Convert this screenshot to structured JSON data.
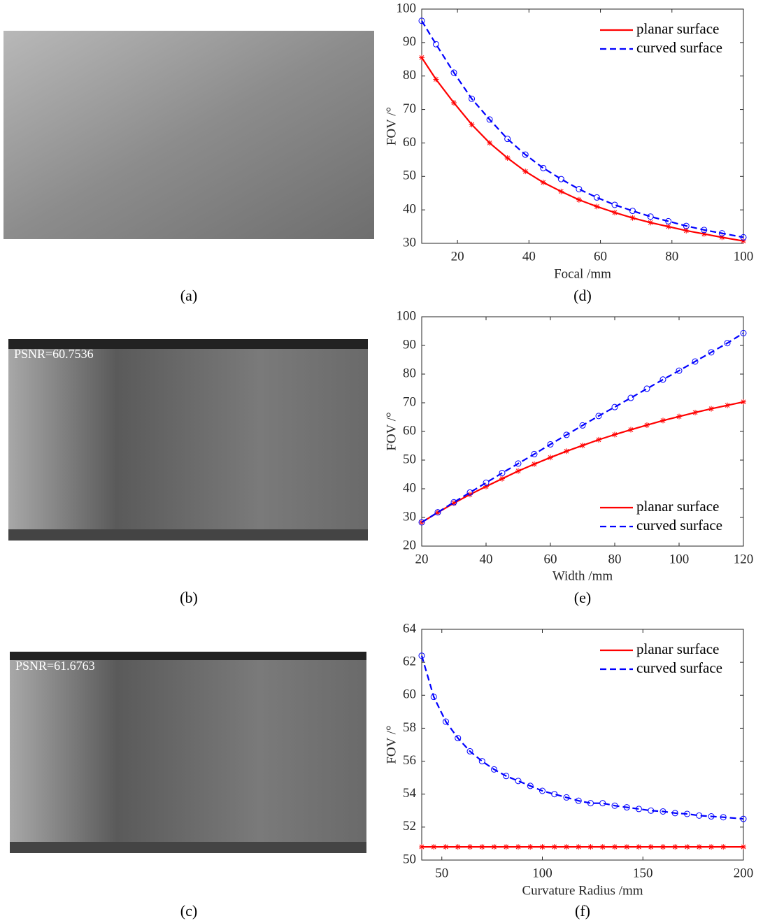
{
  "images": [
    {
      "label": "(a)"
    },
    {
      "label": "(b)",
      "annotation": "PSNR=60.7536"
    },
    {
      "label": "(c)",
      "annotation": "PSNR=61.6763"
    }
  ],
  "chart_data": [
    {
      "type": "line",
      "panel_label": "(d)",
      "x_label": "Focal /mm",
      "y_label": "FOV /°",
      "xlim": [
        10,
        100
      ],
      "xticks": [
        20,
        40,
        60,
        80,
        100
      ],
      "ylim": [
        30,
        100
      ],
      "yticks": [
        30,
        40,
        50,
        60,
        70,
        80,
        90,
        100
      ],
      "legend": "upper right",
      "x": [
        10,
        14,
        19,
        24,
        29,
        34,
        39,
        44,
        49,
        54,
        59,
        64,
        69,
        74,
        79,
        84,
        89,
        94,
        100
      ],
      "series": [
        {
          "name": "planar surface",
          "color": "#ff0000",
          "linestyle": "-",
          "marker": "*",
          "values": [
            85.5,
            79,
            72,
            65.5,
            60,
            55.5,
            51.5,
            48.2,
            45.5,
            43,
            41,
            39.2,
            37.6,
            36.2,
            35,
            33.8,
            32.8,
            31.8,
            30.7
          ]
        },
        {
          "name": "curved surface",
          "color": "#0000ff",
          "linestyle": "--",
          "marker": "o",
          "values": [
            96.5,
            89.5,
            81,
            73.2,
            67,
            61.2,
            56.5,
            52.5,
            49.2,
            46.2,
            43.7,
            41.5,
            39.7,
            38,
            36.6,
            35.2,
            34,
            33,
            31.8
          ]
        }
      ]
    },
    {
      "type": "line",
      "panel_label": "(e)",
      "x_label": "Width /mm",
      "y_label": "FOV /°",
      "xlim": [
        20,
        120
      ],
      "xticks": [
        20,
        40,
        60,
        80,
        100,
        120
      ],
      "ylim": [
        20,
        100
      ],
      "yticks": [
        20,
        30,
        40,
        50,
        60,
        70,
        80,
        90,
        100
      ],
      "legend": "lower right",
      "x": [
        20,
        25,
        30,
        35,
        40,
        45,
        50,
        55,
        60,
        65,
        70,
        75,
        80,
        85,
        90,
        95,
        100,
        105,
        110,
        115,
        120
      ],
      "series": [
        {
          "name": "planar surface",
          "color": "#ff0000",
          "linestyle": "-",
          "marker": "*",
          "values": [
            28.3,
            31.7,
            35,
            38,
            40.8,
            43.5,
            46.2,
            48.6,
            50.9,
            53.1,
            55.1,
            57.1,
            58.9,
            60.6,
            62.2,
            63.8,
            65.2,
            66.6,
            67.9,
            69.1,
            70.3
          ]
        },
        {
          "name": "curved surface",
          "color": "#0000ff",
          "linestyle": "--",
          "marker": "o",
          "values": [
            28.3,
            31.8,
            35.3,
            38.7,
            42.1,
            45.5,
            48.8,
            52.1,
            55.5,
            58.8,
            62.1,
            65.4,
            68.5,
            71.7,
            74.9,
            78.1,
            81.2,
            84.4,
            87.6,
            90.8,
            94.3
          ]
        }
      ]
    },
    {
      "type": "line",
      "panel_label": "(f)",
      "x_label": "Curvature Radius /mm",
      "y_label": "FOV /°",
      "xlim": [
        40,
        200
      ],
      "xticks": [
        50,
        100,
        150,
        200
      ],
      "ylim": [
        50,
        64
      ],
      "yticks": [
        50,
        52,
        54,
        56,
        58,
        60,
        62,
        64
      ],
      "legend": "upper right",
      "x": [
        40,
        46,
        52,
        58,
        64,
        70,
        76,
        82,
        88,
        94,
        100,
        106,
        112,
        118,
        124,
        130,
        136,
        142,
        148,
        154,
        160,
        166,
        172,
        178,
        184,
        190,
        200
      ],
      "series": [
        {
          "name": "planar surface",
          "color": "#ff0000",
          "linestyle": "-",
          "marker": "*",
          "values": [
            50.8,
            50.8,
            50.8,
            50.8,
            50.8,
            50.8,
            50.8,
            50.8,
            50.8,
            50.8,
            50.8,
            50.8,
            50.8,
            50.8,
            50.8,
            50.8,
            50.8,
            50.8,
            50.8,
            50.8,
            50.8,
            50.8,
            50.8,
            50.8,
            50.8,
            50.8,
            50.8
          ]
        },
        {
          "name": "curved surface",
          "color": "#0000ff",
          "linestyle": "--",
          "marker": "o",
          "values": [
            62.4,
            59.9,
            58.4,
            57.4,
            56.6,
            56.0,
            55.5,
            55.1,
            54.8,
            54.5,
            54.2,
            54.0,
            53.8,
            53.6,
            53.45,
            53.45,
            53.3,
            53.2,
            53.1,
            53.0,
            52.95,
            52.85,
            52.8,
            52.7,
            52.65,
            52.6,
            52.5
          ]
        }
      ]
    }
  ]
}
